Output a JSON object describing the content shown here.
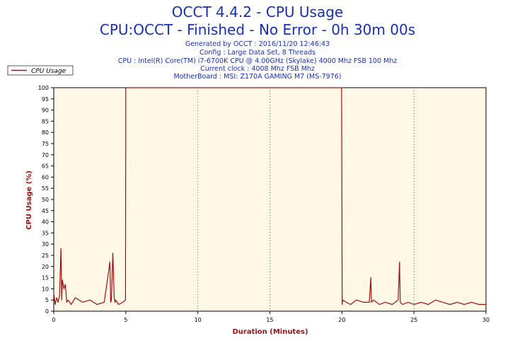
{
  "chart_data": {
    "type": "line",
    "title": "OCCT 4.4.2 - CPU Usage",
    "subtitle": "CPU:OCCT - Finished - No Error - 0h 30m 00s",
    "info_lines": [
      "Generated by OCCT : 2016/11/20 12:46:43",
      "Config : Large Data Set, 8 Threads",
      "CPU : Intel(R) Core(TM) i7-6700K CPU @ 4.00GHz (Skylake) 4000 Mhz FSB 100 Mhz",
      "Current clock : 4008 Mhz FSB  Mhz",
      "MotherBoard : MSI: Z170A GAMING M7 (MS-7976)"
    ],
    "xlabel": "Duration (Minutes)",
    "ylabel": "CPU Usage (%)",
    "xlim": [
      0,
      30
    ],
    "ylim": [
      0,
      100
    ],
    "xticks": [
      0,
      5,
      10,
      15,
      20,
      25,
      30
    ],
    "yticks": [
      0,
      5,
      10,
      15,
      20,
      25,
      30,
      35,
      40,
      45,
      50,
      55,
      60,
      65,
      70,
      75,
      80,
      85,
      90,
      95,
      100
    ],
    "legend": {
      "position": "top-left",
      "entries": [
        "CPU Usage"
      ]
    },
    "grid": {
      "vertical_dotted_at": [
        10,
        15,
        25
      ]
    },
    "colors": {
      "series": "#a01010",
      "plot_bg": "#fff8e6",
      "title": "#1a2fb0",
      "axis_label": "#a01010"
    },
    "series": [
      {
        "name": "CPU Usage",
        "x": [
          0,
          0.1,
          0.2,
          0.3,
          0.4,
          0.5,
          0.55,
          0.6,
          0.7,
          0.8,
          0.9,
          1.0,
          1.2,
          1.5,
          2.0,
          2.5,
          3.0,
          3.5,
          3.9,
          3.95,
          4.0,
          4.1,
          4.2,
          4.25,
          4.3,
          4.5,
          4.8,
          4.98,
          5.0,
          19.98,
          20.0,
          20.02,
          20.05,
          20.3,
          20.6,
          21.0,
          21.5,
          21.9,
          22.0,
          22.05,
          22.2,
          22.6,
          23.0,
          23.5,
          23.9,
          24.0,
          24.05,
          24.2,
          24.6,
          25.0,
          25.5,
          26.0,
          26.5,
          27.0,
          27.5,
          28.0,
          28.5,
          29.0,
          29.5,
          30.0
        ],
        "values": [
          8,
          3,
          6,
          4,
          7,
          28,
          5,
          14,
          10,
          12,
          4,
          5,
          3,
          6,
          4,
          5,
          3,
          4,
          22,
          4,
          5,
          26,
          6,
          4,
          5,
          3,
          4,
          5,
          100,
          100,
          51,
          3,
          5,
          4,
          3,
          5,
          4,
          4,
          15,
          4,
          5,
          3,
          4,
          3,
          5,
          22,
          4,
          3,
          4,
          3,
          4,
          3,
          5,
          4,
          3,
          4,
          3,
          4,
          3,
          3
        ]
      }
    ]
  }
}
